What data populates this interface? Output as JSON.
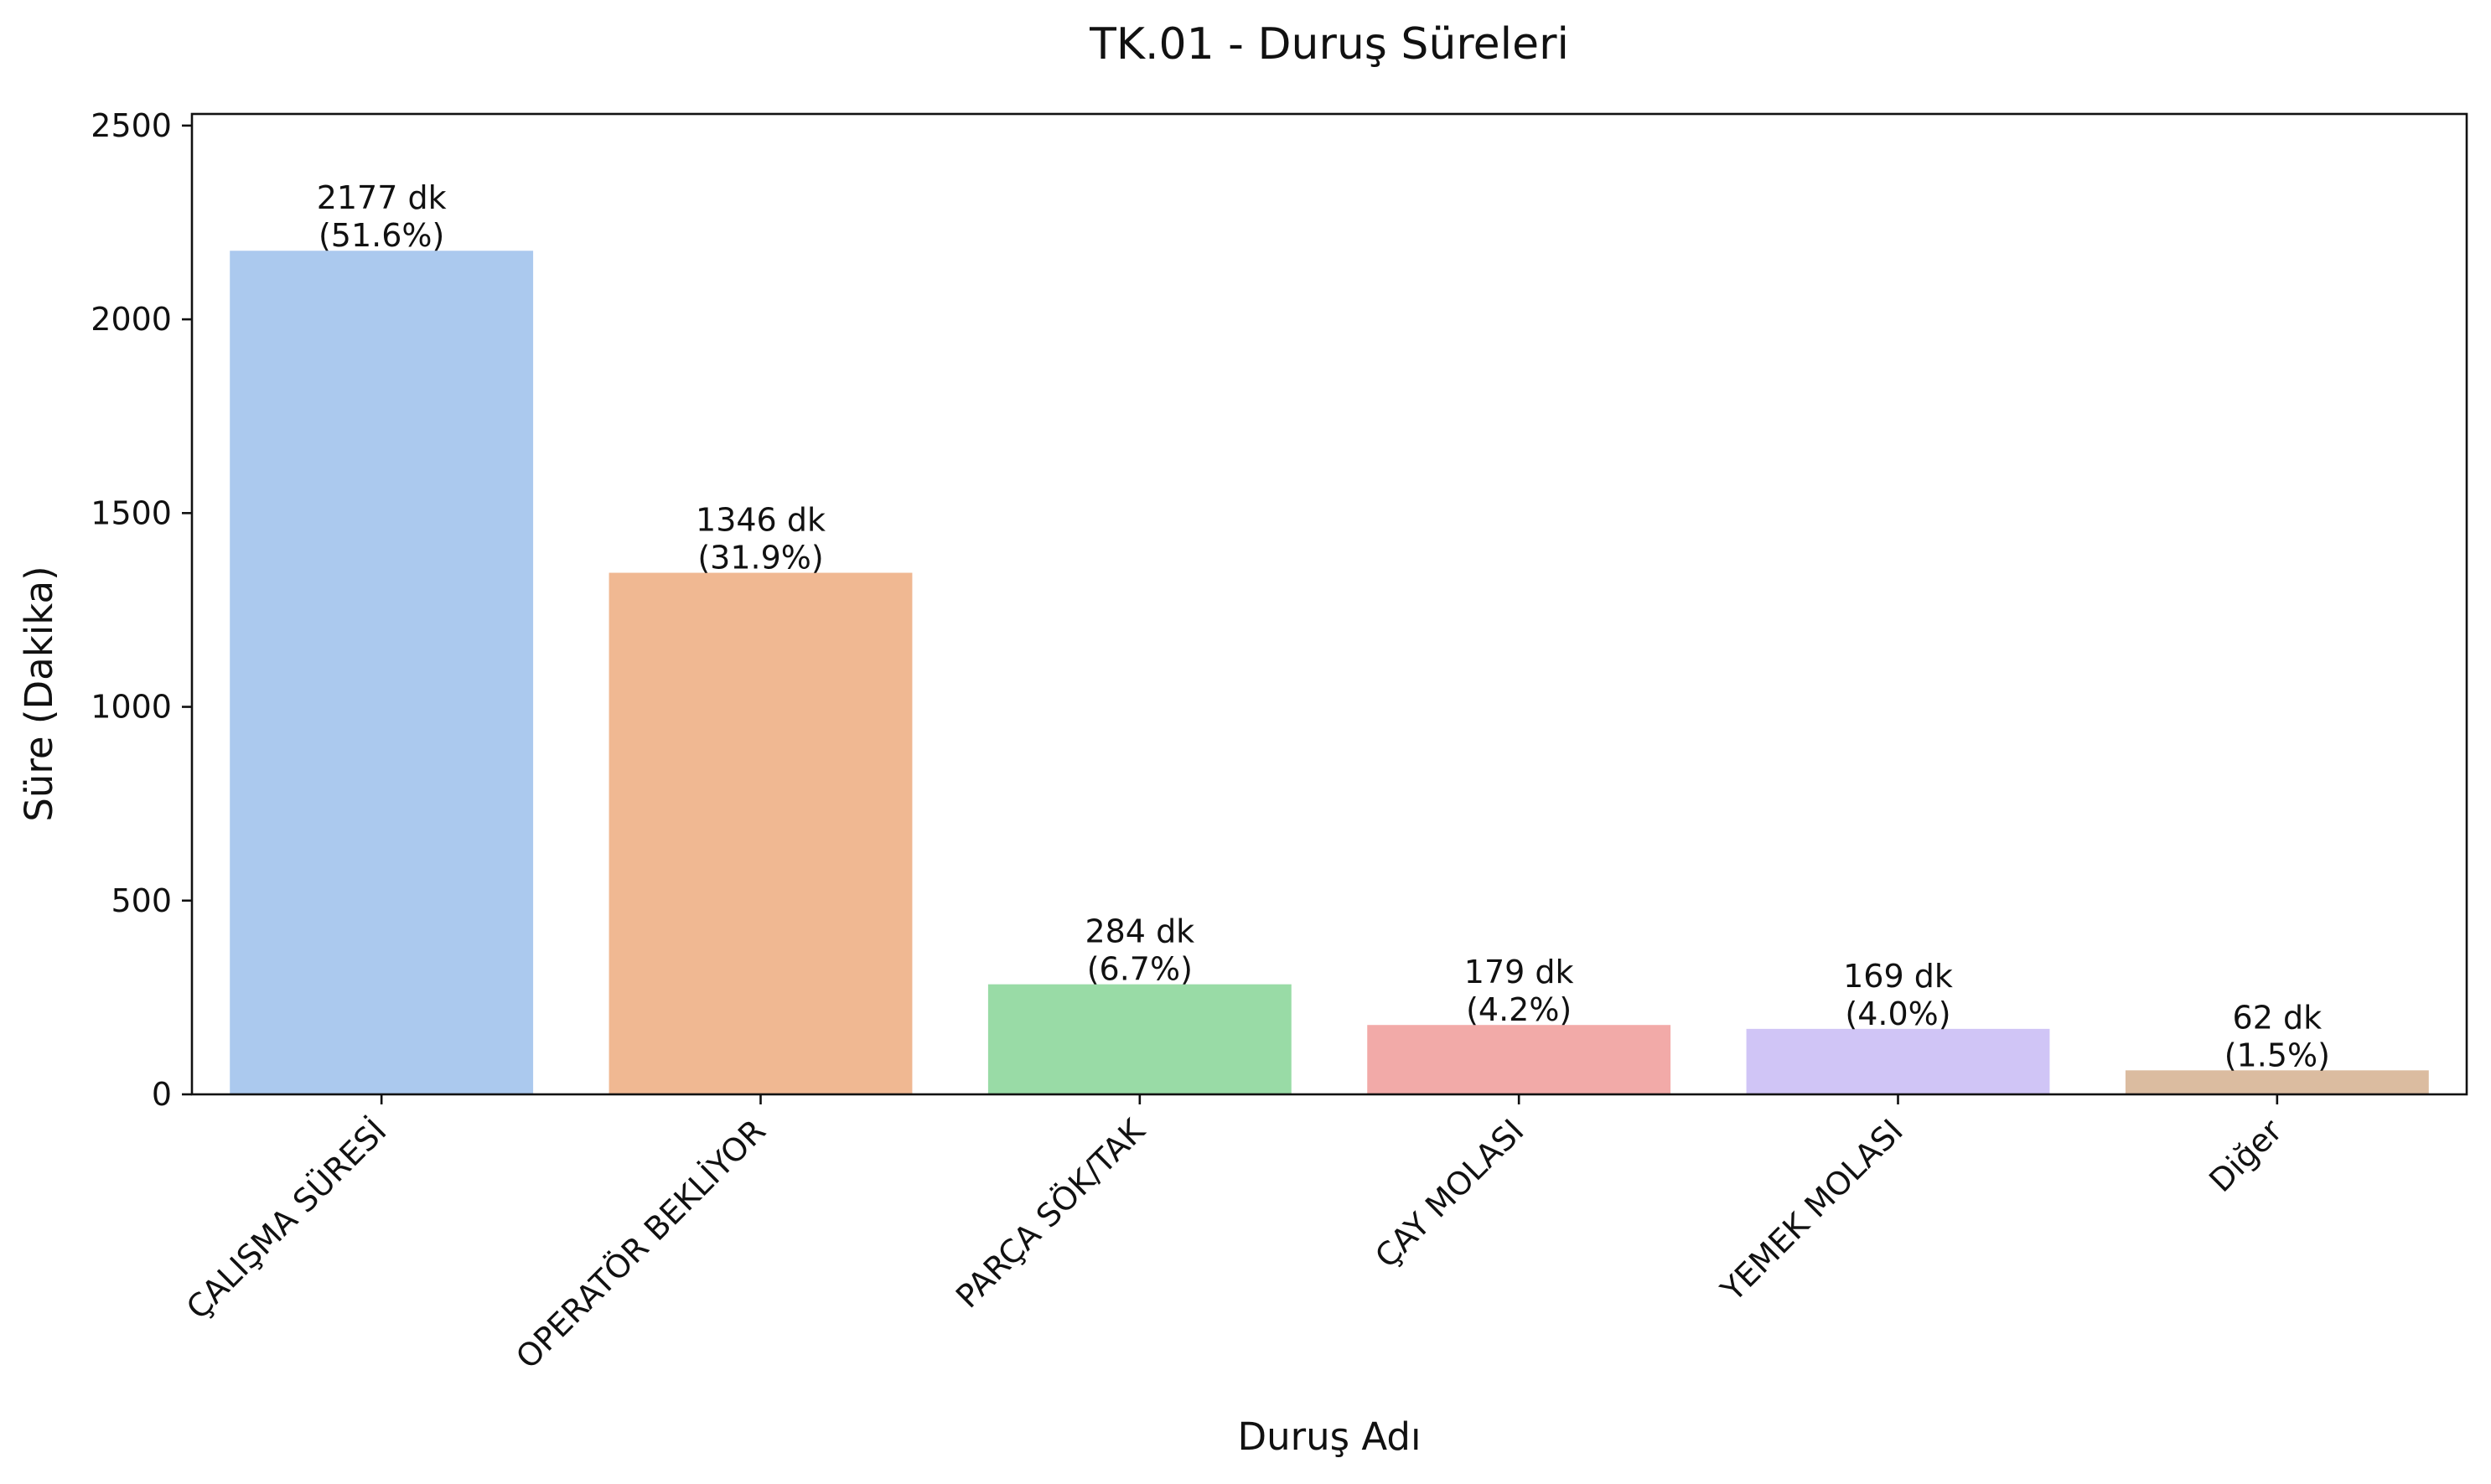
{
  "chart_data": {
    "type": "bar",
    "title": "TK.01 - Duruş Süreleri",
    "xlabel": "Duruş Adı",
    "ylabel": "Süre (Dakika)",
    "ylim": [
      0,
      2530
    ],
    "yticks": [
      0,
      500,
      1000,
      1500,
      2000,
      2500
    ],
    "grid": false,
    "legend": "none",
    "categories": [
      "ÇALIŞMA SÜRESİ",
      "OPERATÖR BEKLİYOR",
      "PARÇA SÖK/TAK",
      "ÇAY MOLASI",
      "YEMEK MOLASI",
      "Diğer"
    ],
    "values": [
      2177,
      1346,
      284,
      179,
      169,
      62
    ],
    "value_labels": [
      "2177 dk",
      "1346 dk",
      "284 dk",
      "179 dk",
      "169 dk",
      "62 dk"
    ],
    "percent_labels": [
      "(51.6%)",
      "(31.9%)",
      "(6.7%)",
      "(4.2%)",
      "(4.0%)",
      "(1.5%)"
    ],
    "colors": [
      "#abc9ee",
      "#f0b892",
      "#99dba6",
      "#f2aaa8",
      "#d0c5f6",
      "#dbbca0"
    ]
  }
}
